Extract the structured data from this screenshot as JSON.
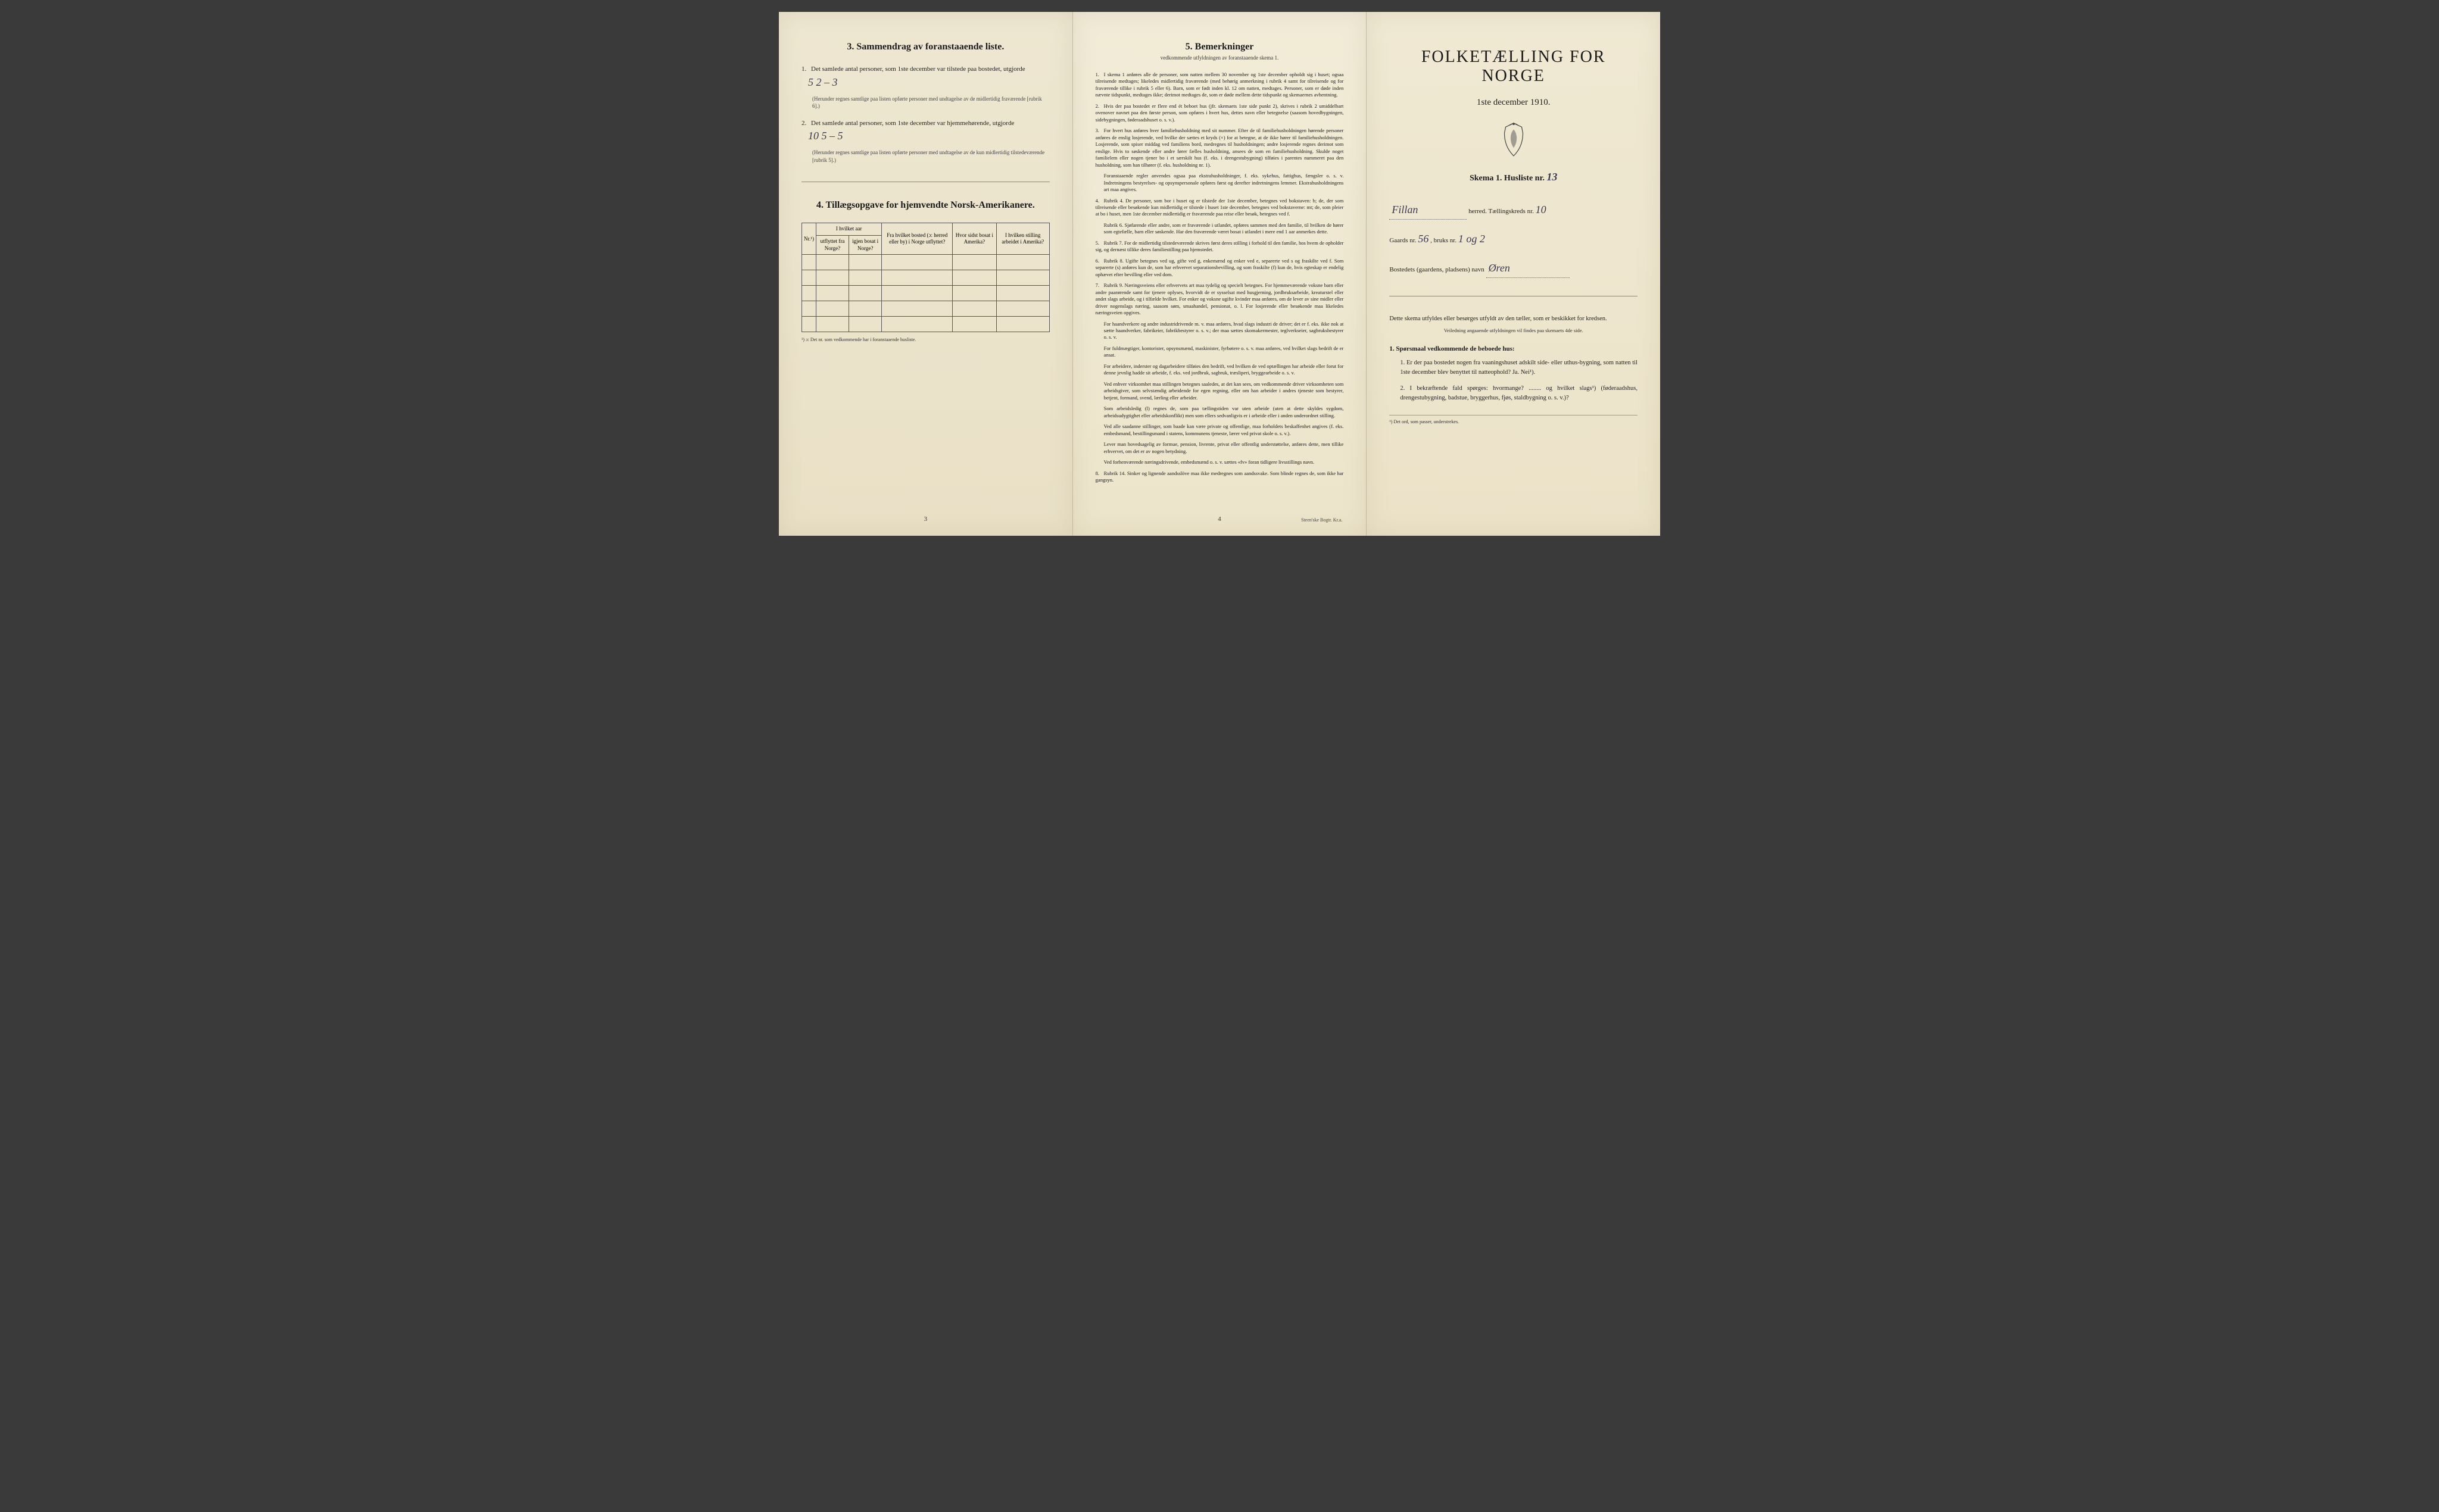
{
  "page1": {
    "section3_title": "3.  Sammendrag av foranstaaende liste.",
    "item1_text": "Det samlede antal personer, som 1ste december var tilstede paa bostedet, utgjorde",
    "item1_hand": "5   2 – 3",
    "item1_fine": "(Herunder regnes samtlige paa listen opførte personer med undtagelse av de midlertidig fraværende [rubrik 6].)",
    "item2_text": "Det samlede antal personer, som 1ste december var hjemmehørende, utgjorde",
    "item2_hand": "10   5 – 5",
    "item2_fine": "(Herunder regnes samtlige paa listen opførte personer med undtagelse av de kun midlertidig tilstedeværende [rubrik 5].)",
    "section4_title": "4.  Tillægsopgave for hjemvendte Norsk-Amerikanere.",
    "table_headers": {
      "col1": "Nr.¹)",
      "col2a": "I hvilket aar",
      "col2b": "utflyttet fra Norge?",
      "col2c": "igjen bosat i Norge?",
      "col3": "Fra hvilket bosted (ɔ: herred eller by) i Norge utflyttet?",
      "col4": "Hvor sidst bosat i Amerika?",
      "col5": "I hvilken stilling arbeidet i Amerika?"
    },
    "table_note": "¹) ɔ: Det nr. som vedkommende har i foranstaaende husliste.",
    "page_num": "3"
  },
  "page2": {
    "title": "5.  Bemerkninger",
    "subtitle": "vedkommende utfyldningen av foranstaaende skema 1.",
    "remarks": [
      "I skema 1 anføres alle de personer, som natten mellem 30 november og 1ste december opholdt sig i huset; ogsaa tilreisende medtages; likeledes midlertidig fraværende (med behørig anmerkning i rubrik 4 samt for tilreisende og for fraværende tillike i rubrik 5 eller 6). Barn, som er født inden kl. 12 om natten, medtages. Personer, som er døde inden nævnte tidspunkt, medtages ikke; derimot medtages de, som er døde mellem dette tidspunkt og skemaernes avhentning.",
      "Hvis der paa bostedet er flere end ét beboet hus (jfr. skemaets 1ste side punkt 2), skrives i rubrik 2 umiddelbart ovenover navnet paa den første person, som opføres i hvert hus, dettes navn eller betegnelse (saasom hovedbygningen, sidebygningen, føderaadshuset o. s. v.).",
      "For hvert hus anføres hver familiehusholdning med sit nummer. Efter de til familiehusholdningen hørende personer anføres de enslig losjerende, ved hvilke der sættes et kryds (×) for at betegne, at de ikke hører til familiehusholdningen. Losjerende, som spiser middag ved familiens bord, medregnes til husholdningen; andre losjerende regnes derimot som enslige. Hvis to søskende eller andre fører fælles husholdning, ansees de som en familiehusholdning. Skulde noget familielem eller nogen tjener bo i et særskilt hus (f. eks. i drengestubygning) tilføies i parentes nummeret paa den husholdning, som han tilhører (f. eks. husholdning nr. 1).",
      "Foranstaaende regler anvendes ogsaa paa ekstrahusholdninger, f. eks. sykehus, fattighus, fængsler o. s. v. Indretningens bestyrelses- og opsynspersonale opføres først og derefter indretningens lemmer. Ekstrahusholdningens art maa angives.",
      "Rubrik 4. De personer, som bor i huset og er tilstede der 1ste december, betegnes ved bokstaven: b; de, der som tilreisende eller besøkende kun midlertidig er tilstede i huset 1ste december, betegnes ved bokstaverne: mt; de, som pleier at bo i huset, men 1ste december midlertidig er fraværende paa reise eller besøk, betegnes ved f.",
      "Rubrik 6. Sjøfarende eller andre, som er fraværende i utlandet, opføres sammen med den familie, til hvilken de hører som egtefælle, barn eller søskende. Har den fraværende været bosat i utlandet i mere end 1 aar anmerkes dette.",
      "Rubrik 7. For de midlertidig tilstedeværende skrives først deres stilling i forhold til den familie, hos hvem de opholder sig, og dernæst tillike deres familiestilling paa hjemstedet.",
      "Rubrik 8. Ugifte betegnes ved ug, gifte ved g, enkemænd og enker ved e, separerte ved s og fraskilte ved f. Som separerte (s) anføres kun de, som har erhvervet separationsbevilling, og som fraskilte (f) kun de, hvis egteskap er endelig ophævet efter bevilling eller ved dom.",
      "Rubrik 9. Næringsveiens eller erhvervets art maa tydelig og specielt betegnes. For hjemmeværende voksne barn eller andre paarørende samt for tjenere oplyses, hvorvidt de er sysselsat med husgjerning, jordbruksarbeide, kreaturstel eller andet slags arbeide, og i tilfælde hvilket. For enker og voksne ugifte kvinder maa anføres, om de lever av sine midler eller driver nogenslags næring, saasom søm, smaahandel, pensionat, o. l. For losjerende eller besøkende maa likeledes næringsveien opgives.",
      "For haandverkere og andre industridrivende m. v. maa anføres, hvad slags industri de driver; det er f. eks. ikke nok at sætte haandverker, fabrikeier, fabrikbestyrer o. s. v.; der maa sættes skomakermester, teglverkseier, sagbruksbestyrer o. s. v.",
      "For fuldmægtiger, kontorister, opsynsmænd, maskinister, fyrbøtere o. s. v. maa anføres, ved hvilket slags bedrift de er ansat.",
      "For arbeidere, inderster og dagarbeidere tilføies den bedrift, ved hvilken de ved optællingen har arbeide eller forut for denne jevnlig hadde sit arbeide, f. eks. ved jordbruk, sagbruk, træsliperi, bryggearbeide o. s. v.",
      "Ved enhver virksomhet maa stillingen betegnes saaledes, at det kan sees, om vedkommende driver virksomheten som arbeidsgiver, som selvstændig arbeidende for egen regning, eller om han arbeider i andres tjeneste som bestyrer, betjent, formand, svend, lærling eller arbeider.",
      "Som arbeidsledig (l) regnes de, som paa tællingstiden var uten arbeide (uten at dette skyldes sygdom, arbeidsudygtighet eller arbeidskonflikt) men som ellers sedvanligvis er i arbeide eller i anden underordnet stilling.",
      "Ved alle saadanne stillinger, som baade kan være private og offentlige, maa forholdets beskaffenhet angives (f. eks. embedsmand, bestillingsmand i statens, kommunens tjeneste, lærer ved privat skole o. s. v.).",
      "Lever man hovedsagelig av formue, pension, livrente, privat eller offentlig understøttelse, anføres dette, men tillike erhvervet, om det er av nogen betydning.",
      "Ved forhenværende næringsdrivende, embedsmænd o. s. v. sættes «fv» foran tidligere livsstillings navn.",
      "Rubrik 14. Sinker og lignende aandsslöve maa ikke medregnes som aandssvake. Som blinde regnes de, som ikke har gangsyn."
    ],
    "page_num": "4",
    "printer": "Steen'ske Bogtr.  Kr.a."
  },
  "page3": {
    "main_title": "FOLKETÆLLING FOR NORGE",
    "date": "1ste december 1910.",
    "skema": "Skema 1.  Husliste nr.",
    "skema_hand": "13",
    "line1_label": "herred.  Tællingskreds nr.",
    "line1_hand_a": "Fillan",
    "line1_hand_b": "10",
    "line2_a": "Gaards nr.",
    "line2_hand_a": "56",
    "line2_b": ", bruks nr.",
    "line2_hand_b": "1 og 2",
    "line3": "Bostedets (gaardens, pladsens) navn",
    "line3_hand": "Øren",
    "instruction": "Dette skema utfyldes eller besørges utfyldt av den tæller, som er beskikket for kredsen.",
    "instruction_sub": "Veiledning angaaende utfyldningen vil findes paa skemaets 4de side.",
    "q_head": "1. Spørsmaal vedkommende de beboede hus:",
    "q1": "Er der paa bostedet nogen fra vaaningshuset adskilt side- eller uthus-bygning, som natten til 1ste december blev benyttet til natteophold?  Ja.  Nei¹).",
    "q2": "I bekræftende fald spørges: hvormange? ........ og hvilket slags¹) (føderaadshus, drengestubygning, badstue, bryggerhus, fjøs, staldbygning o. s. v.)?",
    "footnote": "¹) Det ord, som passer, understrekes."
  },
  "colors": {
    "paper": "#ede5cd",
    "ink": "#1a1a1a",
    "hand": "#3a3a55",
    "border": "#555"
  }
}
